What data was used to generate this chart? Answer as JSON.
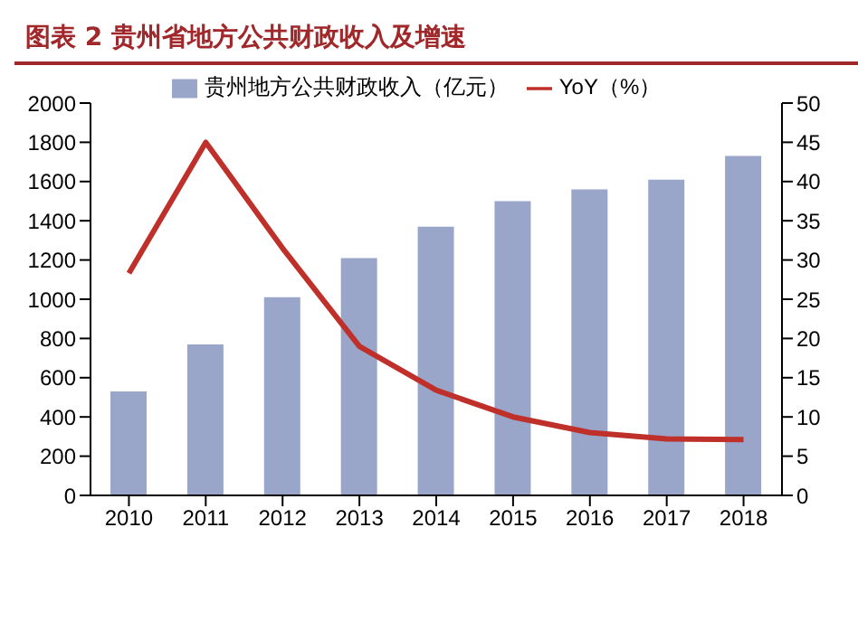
{
  "chart_data": {
    "type": "bar",
    "title": "图表 2  贵州省地方公共财政收入及增速",
    "categories": [
      "2010",
      "2011",
      "2012",
      "2013",
      "2014",
      "2015",
      "2016",
      "2017",
      "2018"
    ],
    "series": [
      {
        "name": "贵州地方公共财政收入（亿元）",
        "color": "#99a6c9",
        "values": [
          530,
          770,
          1010,
          1210,
          1370,
          1500,
          1560,
          1610,
          1730
        ]
      },
      {
        "name": "YoY（%）",
        "type": "line",
        "axis": "y2",
        "color": "#c0302a",
        "values": [
          28.3,
          45,
          31.5,
          19,
          13.4,
          10,
          8,
          7.2,
          7.1
        ]
      }
    ],
    "ylim": [
      0,
      2000
    ],
    "yticks": [
      0,
      200,
      400,
      600,
      800,
      1000,
      1200,
      1400,
      1600,
      1800,
      2000
    ],
    "y2lim": [
      0,
      50
    ],
    "y2ticks": [
      0,
      5,
      10,
      15,
      20,
      25,
      30,
      35,
      40,
      45,
      50
    ],
    "grid": false,
    "legend": "top",
    "marker": "none"
  }
}
